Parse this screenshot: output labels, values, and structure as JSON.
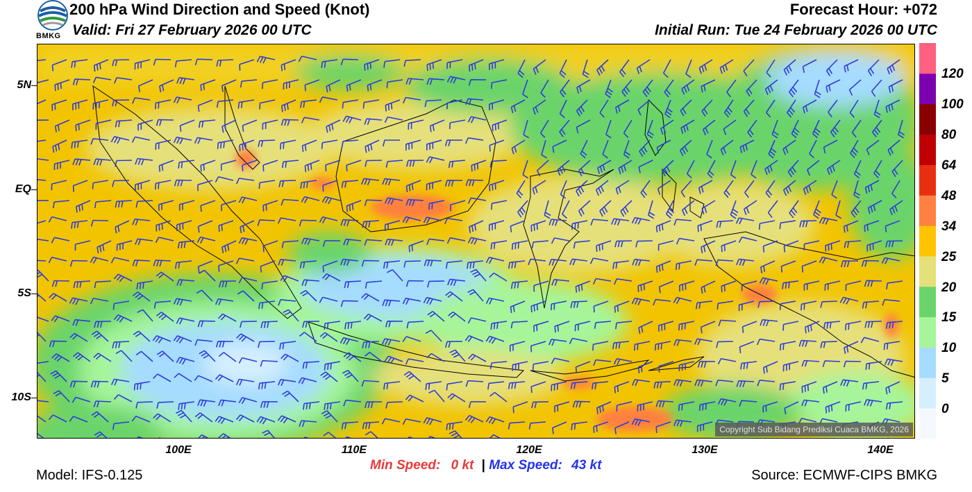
{
  "header": {
    "title": "200 hPa Wind Direction and Speed (Knot)",
    "valid": "Valid: Fri 27 February 2026 00 UTC",
    "forecast_hour": "Forecast Hour: +072",
    "initial_run": "Initial Run: Tue 24 February 2026 00 UTC"
  },
  "logo": {
    "text": "BMKG",
    "icon": "bmkg-logo-icon"
  },
  "map": {
    "y_ticks": [
      "5N",
      "EQ",
      "5S",
      "10S"
    ],
    "x_ticks": [
      "100E",
      "110E",
      "120E",
      "130E",
      "140E"
    ],
    "copyright": "Copyright Sub Bidang Prediksi Cuaca BMKG, 2026"
  },
  "colorbar": {
    "labels": [
      "0",
      "5",
      "10",
      "15",
      "20",
      "25",
      "34",
      "48",
      "64",
      "80",
      "100",
      "120"
    ],
    "colors": [
      "#f5f9ff",
      "#d6efff",
      "#a6dcff",
      "#a6f59a",
      "#6ad46a",
      "#e6e07a",
      "#ffc400",
      "#ff8040",
      "#e83010",
      "#c00000",
      "#8a0000",
      "#7a00b0",
      "#ff6080"
    ]
  },
  "footer": {
    "min_label": "Min Speed:",
    "min_value": "0 kt",
    "separator": "|",
    "max_label": "Max Speed:",
    "max_value": "43 kt",
    "model": "Model: IFS-0.125",
    "source": "Source: ECMWF-CIPS BMKG"
  },
  "colors": {
    "min": "#e83a3a",
    "max": "#2233ee",
    "barb": "#2b3bdc",
    "coast": "#000000"
  }
}
